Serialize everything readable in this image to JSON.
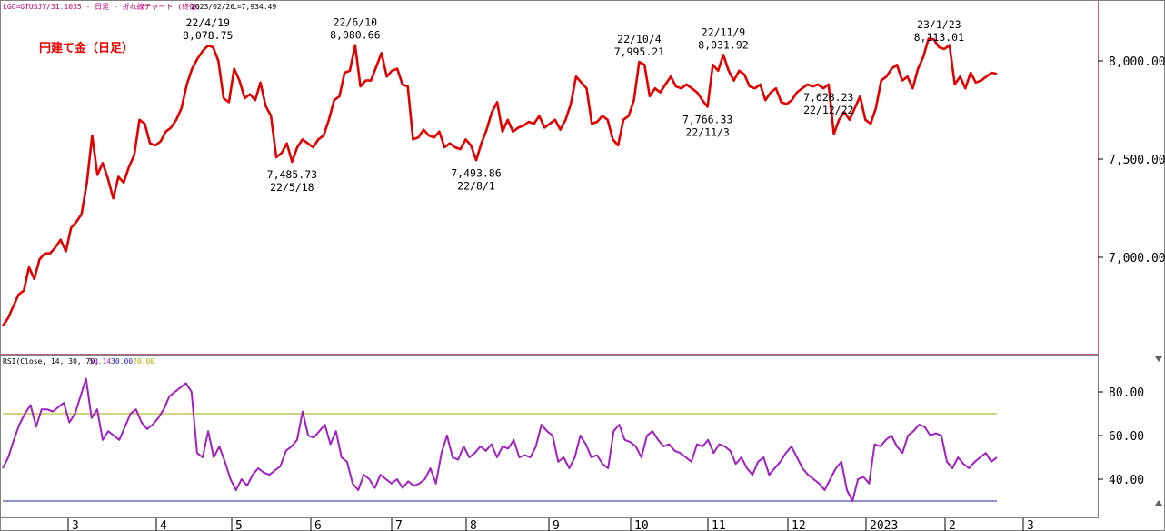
{
  "header": {
    "symbol": "LGC=GTUSJY/31.1035 - 日足 - 折れ線チャート (終値)",
    "date": "2023/02/20",
    "last": "L=7,934.49"
  },
  "rsi_header": {
    "label": "RSI(Close, 14, 30, 70)",
    "value": "50.14",
    "low": "30.00",
    "high": "70.00"
  },
  "colors": {
    "price_line": "#e00000",
    "rsi_line": "#a020c0",
    "upper_band": "#a8a800",
    "lower_band": "#2020a0",
    "grid": "#b0b0b0",
    "frame": "#c06080"
  },
  "chart_data": [
    {
      "type": "line",
      "title": "円建て金（日足）",
      "ylim": [
        6600,
        8350
      ],
      "y_ticks": [
        7000,
        7500,
        8000
      ],
      "y_tick_labels": [
        "7,000.00",
        "7,500.00",
        "8,000.00"
      ],
      "x_axis_labels": [
        "3",
        "4",
        "5",
        "6",
        "7",
        "8",
        "9",
        "10",
        "11",
        "12",
        "2023",
        "2",
        "3"
      ],
      "series": [
        {
          "values": [
            6650,
            6690,
            6750,
            6810,
            6830,
            6950,
            6890,
            6990,
            7020,
            7020,
            7050,
            7090,
            7030,
            7150,
            7180,
            7220,
            7380,
            7620,
            7420,
            7480,
            7400,
            7300,
            7410,
            7380,
            7460,
            7520,
            7700,
            7680,
            7580,
            7570,
            7590,
            7640,
            7660,
            7700,
            7760,
            7880,
            7960,
            8010,
            8050,
            8078,
            8070,
            8000,
            7810,
            7790,
            7960,
            7900,
            7810,
            7830,
            7800,
            7890,
            7770,
            7720,
            7510,
            7530,
            7580,
            7486,
            7560,
            7600,
            7580,
            7560,
            7600,
            7620,
            7700,
            7800,
            7820,
            7940,
            7950,
            8080,
            7870,
            7900,
            7900,
            7970,
            8040,
            7920,
            7950,
            7960,
            7880,
            7870,
            7600,
            7610,
            7650,
            7620,
            7610,
            7640,
            7560,
            7580,
            7560,
            7550,
            7600,
            7570,
            7494,
            7580,
            7650,
            7740,
            7790,
            7640,
            7700,
            7640,
            7660,
            7670,
            7690,
            7680,
            7720,
            7660,
            7680,
            7700,
            7650,
            7700,
            7780,
            7920,
            7890,
            7860,
            7680,
            7690,
            7720,
            7700,
            7600,
            7570,
            7700,
            7720,
            7800,
            7995,
            7980,
            7820,
            7860,
            7840,
            7880,
            7920,
            7870,
            7860,
            7880,
            7860,
            7840,
            7800,
            7766,
            7980,
            7950,
            8031,
            7950,
            7900,
            7950,
            7930,
            7870,
            7860,
            7880,
            7800,
            7840,
            7860,
            7790,
            7780,
            7800,
            7840,
            7860,
            7880,
            7870,
            7880,
            7860,
            7880,
            7628,
            7700,
            7740,
            7700,
            7760,
            7820,
            7700,
            7680,
            7760,
            7900,
            7920,
            7960,
            7980,
            7900,
            7920,
            7860,
            7960,
            8020,
            8113,
            8110,
            8070,
            8060,
            8080,
            7880,
            7920,
            7860,
            7940,
            7890,
            7900,
            7920,
            7940,
            7934
          ]
        }
      ],
      "annotations": [
        {
          "date": "22/4/19",
          "value": "8,078.75",
          "index": 39,
          "pos": "above"
        },
        {
          "date": "22/5/18",
          "value": "7,485.73",
          "index": 55,
          "pos": "below"
        },
        {
          "date": "22/6/10",
          "value": "8,080.66",
          "index": 67,
          "pos": "above"
        },
        {
          "date": "22/8/1",
          "value": "7,493.86",
          "index": 90,
          "pos": "below"
        },
        {
          "date": "22/10/4",
          "value": "7,995.21",
          "index": 121,
          "pos": "above"
        },
        {
          "date": "22/11/3",
          "value": "7,766.33",
          "index": 134,
          "pos": "below"
        },
        {
          "date": "22/11/9",
          "value": "8,031.92",
          "index": 137,
          "pos": "above"
        },
        {
          "date": "22/12/22",
          "value": "7,628.23",
          "index": 157,
          "pos": "below"
        },
        {
          "date": "23/1/23",
          "value": "8,113.01",
          "index": 178,
          "pos": "above"
        }
      ]
    },
    {
      "type": "line",
      "ylim": [
        25,
        95
      ],
      "y_ticks": [
        40,
        60,
        80
      ],
      "y_tick_labels": [
        "40.00",
        "60.00",
        "80.00"
      ],
      "bands": [
        30,
        70
      ],
      "series": [
        {
          "values": [
            45,
            50,
            58,
            65,
            70,
            74,
            64,
            72,
            72,
            71,
            73,
            75,
            66,
            70,
            78,
            86,
            68,
            72,
            58,
            62,
            60,
            58,
            64,
            70,
            72,
            66,
            63,
            65,
            68,
            72,
            78,
            80,
            82,
            84,
            80,
            52,
            50,
            62,
            50,
            55,
            48,
            40,
            35,
            40,
            37,
            42,
            45,
            43,
            42,
            44,
            46,
            53,
            55,
            58,
            71,
            60,
            59,
            62,
            65,
            56,
            62,
            50,
            48,
            38,
            35,
            42,
            40,
            36,
            42,
            40,
            38,
            40,
            36,
            39,
            37,
            38,
            40,
            45,
            38,
            52,
            60,
            50,
            49,
            55,
            50,
            52,
            55,
            53,
            56,
            50,
            55,
            54,
            58,
            50,
            51,
            50,
            55,
            65,
            62,
            60,
            48,
            50,
            45,
            50,
            60,
            56,
            50,
            51,
            47,
            45,
            62,
            65,
            58,
            57,
            55,
            50,
            60,
            62,
            58,
            55,
            56,
            53,
            52,
            50,
            48,
            56,
            55,
            58,
            52,
            56,
            55,
            53,
            47,
            50,
            45,
            42,
            48,
            50,
            42,
            45,
            48,
            52,
            55,
            50,
            45,
            42,
            40,
            38,
            35,
            40,
            45,
            48,
            35,
            30,
            40,
            41,
            38,
            56,
            55,
            58,
            60,
            55,
            52,
            60,
            62,
            65,
            64,
            60,
            61,
            60,
            48,
            45,
            50,
            47,
            45,
            48,
            50,
            52,
            48,
            50
          ]
        }
      ]
    }
  ]
}
